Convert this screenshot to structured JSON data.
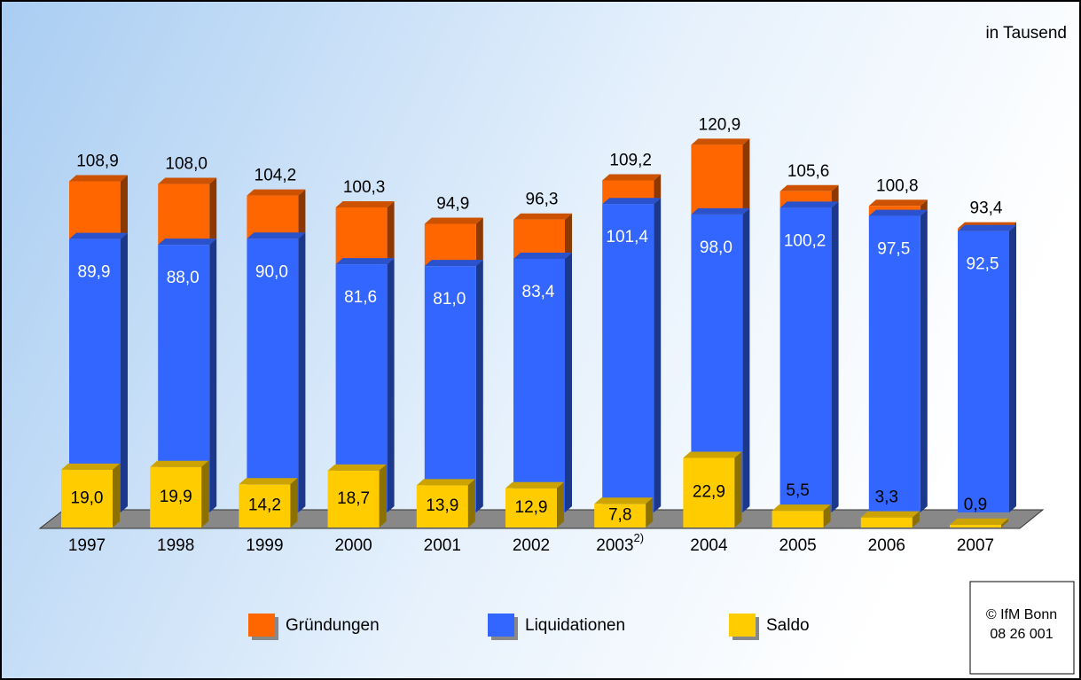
{
  "chart_data": {
    "type": "bar3d",
    "note": "in Tausend",
    "categories": [
      "1997",
      "1998",
      "1999",
      "2000",
      "2001",
      "2002",
      "2003",
      "2004",
      "2005",
      "2006",
      "2007"
    ],
    "category_footnotes": [
      null,
      null,
      null,
      null,
      null,
      null,
      "2)",
      null,
      null,
      null,
      null
    ],
    "series": [
      {
        "name": "Gründungen",
        "color": "#ff6600",
        "values": [
          108.9,
          108.0,
          104.2,
          100.3,
          94.9,
          96.3,
          109.2,
          120.9,
          105.6,
          100.8,
          93.4
        ],
        "value_labels": [
          "108,9",
          "108,0",
          "104,2",
          "100,3",
          "94,9",
          "96,3",
          "109,2",
          "120,9",
          "105,6",
          "100,8",
          "93,4"
        ]
      },
      {
        "name": "Liquidationen",
        "color": "#3366ff",
        "values": [
          89.9,
          88.0,
          90.0,
          81.6,
          81.0,
          83.4,
          101.4,
          98.0,
          100.2,
          97.5,
          92.5
        ],
        "value_labels": [
          "89,9",
          "88,0",
          "90,0",
          "81,6",
          "81,0",
          "83,4",
          "101,4",
          "98,0",
          "100,2",
          "97,5",
          "92,5"
        ]
      },
      {
        "name": "Saldo",
        "color": "#ffcc00",
        "values": [
          19.0,
          19.9,
          14.2,
          18.7,
          13.9,
          12.9,
          7.8,
          22.9,
          5.5,
          3.3,
          0.9
        ],
        "value_labels": [
          "19,0",
          "19,9",
          "14,2",
          "18,7",
          "13,9",
          "12,9",
          "7,8",
          "22,9",
          "5,5",
          "3,3",
          "0,9"
        ]
      }
    ],
    "source": [
      "© IfM Bonn",
      "08  26  001"
    ]
  }
}
